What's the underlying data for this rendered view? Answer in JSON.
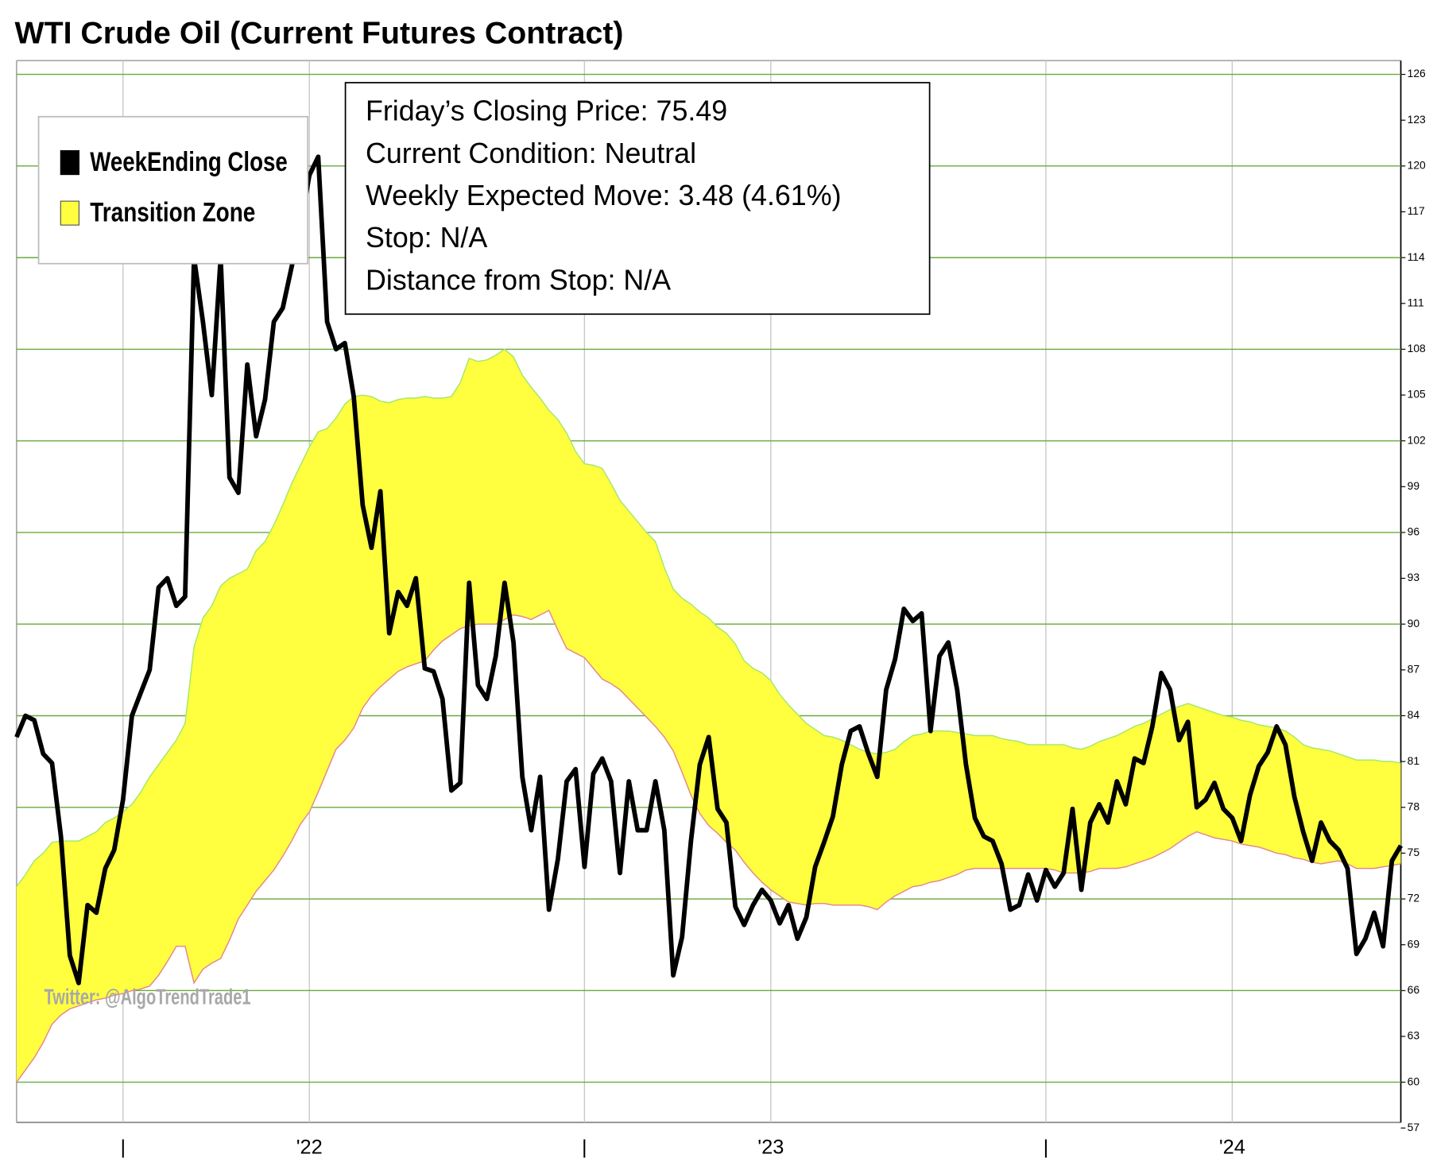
{
  "chart_data": {
    "type": "line",
    "title": "WTI Crude Oil (Current Futures Contract)",
    "annotations": [
      "Friday’s Closing Price: 75.49",
      "Current Condition: Neutral",
      "Weekly Expected Move: 3.48 (4.61%)",
      "Stop: N/A",
      "Distance from Stop: N/A"
    ],
    "watermark": "Twitter: @AlgoTrendTrade1",
    "categories": [
      null,
      null,
      null,
      null,
      null,
      null,
      null,
      null,
      null,
      null,
      null,
      null,
      "|",
      null,
      null,
      null,
      null,
      null,
      null,
      null,
      null,
      null,
      null,
      null,
      null,
      null,
      null,
      null,
      null,
      null,
      null,
      null,
      null,
      "'22",
      null,
      null,
      null,
      null,
      null,
      null,
      null,
      null,
      null,
      null,
      null,
      null,
      null,
      null,
      null,
      null,
      null,
      null,
      null,
      null,
      null,
      null,
      null,
      null,
      null,
      null,
      null,
      null,
      null,
      null,
      "|",
      null,
      null,
      null,
      null,
      null,
      null,
      null,
      null,
      null,
      null,
      null,
      null,
      null,
      null,
      null,
      null,
      null,
      null,
      null,
      null,
      "'23",
      null,
      null,
      null,
      null,
      null,
      null,
      null,
      null,
      null,
      null,
      null,
      null,
      null,
      null,
      null,
      null,
      null,
      null,
      null,
      null,
      null,
      null,
      null,
      null,
      null,
      null,
      null,
      null,
      null,
      null,
      "|",
      null,
      null,
      null,
      null,
      null,
      null,
      null,
      null,
      null,
      null,
      null,
      null,
      null,
      null,
      null,
      null,
      null,
      null,
      null,
      null,
      "'24",
      null,
      null,
      null,
      null,
      null,
      null,
      null,
      null,
      null,
      null,
      null,
      null,
      null,
      null,
      null,
      null,
      null,
      null,
      null
    ],
    "series": [
      {
        "name": "WeekEnding Close",
        "color": "#000000",
        "values": [
          82.6,
          84.0,
          83.7,
          81.5,
          80.9,
          76.1,
          68.3,
          66.5,
          71.6,
          71.1,
          74.0,
          75.2,
          78.5,
          84.0,
          85.5,
          87.0,
          92.4,
          93.0,
          91.2,
          91.8,
          114.0,
          109.8,
          105.0,
          114.0,
          99.6,
          98.6,
          107.0,
          102.3,
          104.7,
          109.8,
          110.7,
          113.4,
          116.1,
          119.4,
          120.6,
          109.8,
          108.0,
          108.4,
          104.9,
          97.8,
          95.0,
          98.7,
          89.4,
          92.1,
          91.2,
          93.0,
          87.1,
          86.9,
          85.1,
          79.1,
          79.6,
          92.7,
          86.0,
          85.1,
          87.9,
          92.7,
          88.8,
          80.0,
          76.5,
          80.0,
          71.3,
          74.6,
          79.7,
          80.5,
          74.1,
          80.2,
          81.2,
          79.7,
          73.7,
          79.7,
          76.5,
          76.5,
          79.7,
          76.5,
          67.0,
          69.5,
          75.8,
          80.8,
          82.6,
          77.9,
          77.0,
          71.5,
          70.3,
          71.6,
          72.6,
          71.9,
          70.4,
          71.6,
          69.4,
          70.8,
          74.1,
          75.7,
          77.4,
          80.8,
          83.0,
          83.3,
          81.5,
          80.0,
          85.7,
          87.7,
          91.0,
          90.2,
          90.7,
          83.0,
          87.9,
          88.8,
          85.7,
          80.8,
          77.3,
          76.1,
          75.8,
          74.3,
          71.3,
          71.6,
          73.6,
          71.9,
          73.9,
          72.8,
          73.7,
          77.9,
          72.6,
          77.0,
          78.2,
          77.0,
          79.7,
          78.2,
          81.2,
          80.9,
          83.3,
          86.8,
          85.7,
          82.4,
          83.6,
          78.0,
          78.5,
          79.6,
          77.9,
          77.3,
          75.8,
          78.8,
          80.7,
          81.6,
          83.3,
          82.1,
          78.7,
          76.4,
          74.5,
          77.0,
          75.8,
          75.2,
          74.0,
          68.4,
          69.4,
          71.1,
          68.9,
          74.5,
          75.49
        ]
      },
      {
        "name": "Transition Zone",
        "color": "#ffff40",
        "upper_color": "#a6e86a",
        "lower_color": "#e58a8a",
        "upper": [
          72.8,
          73.6,
          74.5,
          75.0,
          75.7,
          75.8,
          75.8,
          75.8,
          76.1,
          76.4,
          77.0,
          77.3,
          77.7,
          78.2,
          79.0,
          80.0,
          80.8,
          81.6,
          82.4,
          83.5,
          88.5,
          90.4,
          91.2,
          92.5,
          93.0,
          93.3,
          93.6,
          94.8,
          95.4,
          96.5,
          97.8,
          99.2,
          100.4,
          101.6,
          102.6,
          102.8,
          103.5,
          104.4,
          104.9,
          105.0,
          104.9,
          104.6,
          104.5,
          104.7,
          104.8,
          104.8,
          104.9,
          104.8,
          104.8,
          104.9,
          105.8,
          107.4,
          107.2,
          107.3,
          107.6,
          108.0,
          107.5,
          106.3,
          105.5,
          104.8,
          104.0,
          103.4,
          102.5,
          101.3,
          100.5,
          100.4,
          100.2,
          99.2,
          98.1,
          97.4,
          96.7,
          96.0,
          95.4,
          93.7,
          92.3,
          91.7,
          91.3,
          90.8,
          90.4,
          89.8,
          89.4,
          88.7,
          87.6,
          87.1,
          86.8,
          86.3,
          85.4,
          84.7,
          84.1,
          83.5,
          83.1,
          82.7,
          82.6,
          82.4,
          82.1,
          81.8,
          81.6,
          81.5,
          81.6,
          81.8,
          82.3,
          82.7,
          82.8,
          83.0,
          83.0,
          83.0,
          82.9,
          82.8,
          82.7,
          82.7,
          82.7,
          82.5,
          82.4,
          82.3,
          82.1,
          82.1,
          82.1,
          82.1,
          82.1,
          81.9,
          81.8,
          82.0,
          82.3,
          82.5,
          82.7,
          83.0,
          83.3,
          83.5,
          83.8,
          84.1,
          84.4,
          84.6,
          84.8,
          84.6,
          84.4,
          84.2,
          84.0,
          83.9,
          83.7,
          83.6,
          83.4,
          83.3,
          83.2,
          83.0,
          82.6,
          82.1,
          81.9,
          81.8,
          81.7,
          81.5,
          81.3,
          81.1,
          81.1,
          81.1,
          81.0,
          81.0,
          80.9
        ],
        "lower": [
          60.0,
          60.8,
          61.6,
          62.6,
          63.8,
          64.4,
          64.8,
          65.0,
          65.2,
          65.4,
          65.5,
          65.7,
          65.8,
          66.0,
          66.1,
          66.3,
          67.0,
          67.9,
          68.9,
          68.9,
          66.5,
          67.4,
          67.8,
          68.1,
          69.3,
          70.7,
          71.6,
          72.5,
          73.2,
          73.9,
          74.8,
          75.8,
          76.9,
          77.7,
          79.0,
          80.4,
          81.8,
          82.4,
          83.2,
          84.5,
          85.3,
          85.9,
          86.4,
          86.9,
          87.2,
          87.4,
          87.6,
          88.3,
          88.9,
          89.3,
          89.7,
          89.9,
          90.0,
          90.0,
          90.0,
          90.3,
          90.6,
          90.5,
          90.3,
          90.6,
          90.9,
          89.6,
          88.4,
          88.1,
          87.8,
          87.1,
          86.4,
          86.1,
          85.7,
          85.1,
          84.5,
          83.9,
          83.3,
          82.6,
          81.7,
          80.3,
          78.8,
          77.6,
          76.8,
          76.3,
          75.7,
          75.2,
          74.4,
          73.7,
          73.1,
          72.6,
          72.2,
          71.8,
          71.7,
          71.6,
          71.7,
          71.7,
          71.6,
          71.6,
          71.6,
          71.6,
          71.5,
          71.3,
          71.8,
          72.2,
          72.5,
          72.8,
          72.9,
          73.1,
          73.2,
          73.4,
          73.6,
          73.9,
          74.0,
          74.0,
          74.0,
          74.0,
          74.0,
          74.0,
          74.0,
          74.0,
          74.0,
          73.9,
          73.7,
          73.7,
          73.7,
          73.8,
          74.0,
          74.0,
          74.0,
          74.1,
          74.3,
          74.5,
          74.7,
          75.0,
          75.3,
          75.7,
          76.1,
          76.4,
          76.2,
          76.0,
          75.9,
          75.8,
          75.6,
          75.5,
          75.4,
          75.2,
          75.0,
          74.9,
          74.7,
          74.6,
          74.4,
          74.3,
          74.4,
          74.5,
          74.3,
          74.0,
          74.0,
          74.0,
          74.1,
          74.2,
          74.3
        ]
      }
    ],
    "ylim": [
      57,
      126.9
    ],
    "yticks": [
      57,
      60,
      63,
      66,
      69,
      72,
      75,
      78,
      81,
      84,
      87,
      90,
      93,
      96,
      99,
      102,
      105,
      108,
      111,
      114,
      117,
      120,
      123,
      126
    ],
    "grid": true,
    "grid_color": "#6aaa3a"
  }
}
